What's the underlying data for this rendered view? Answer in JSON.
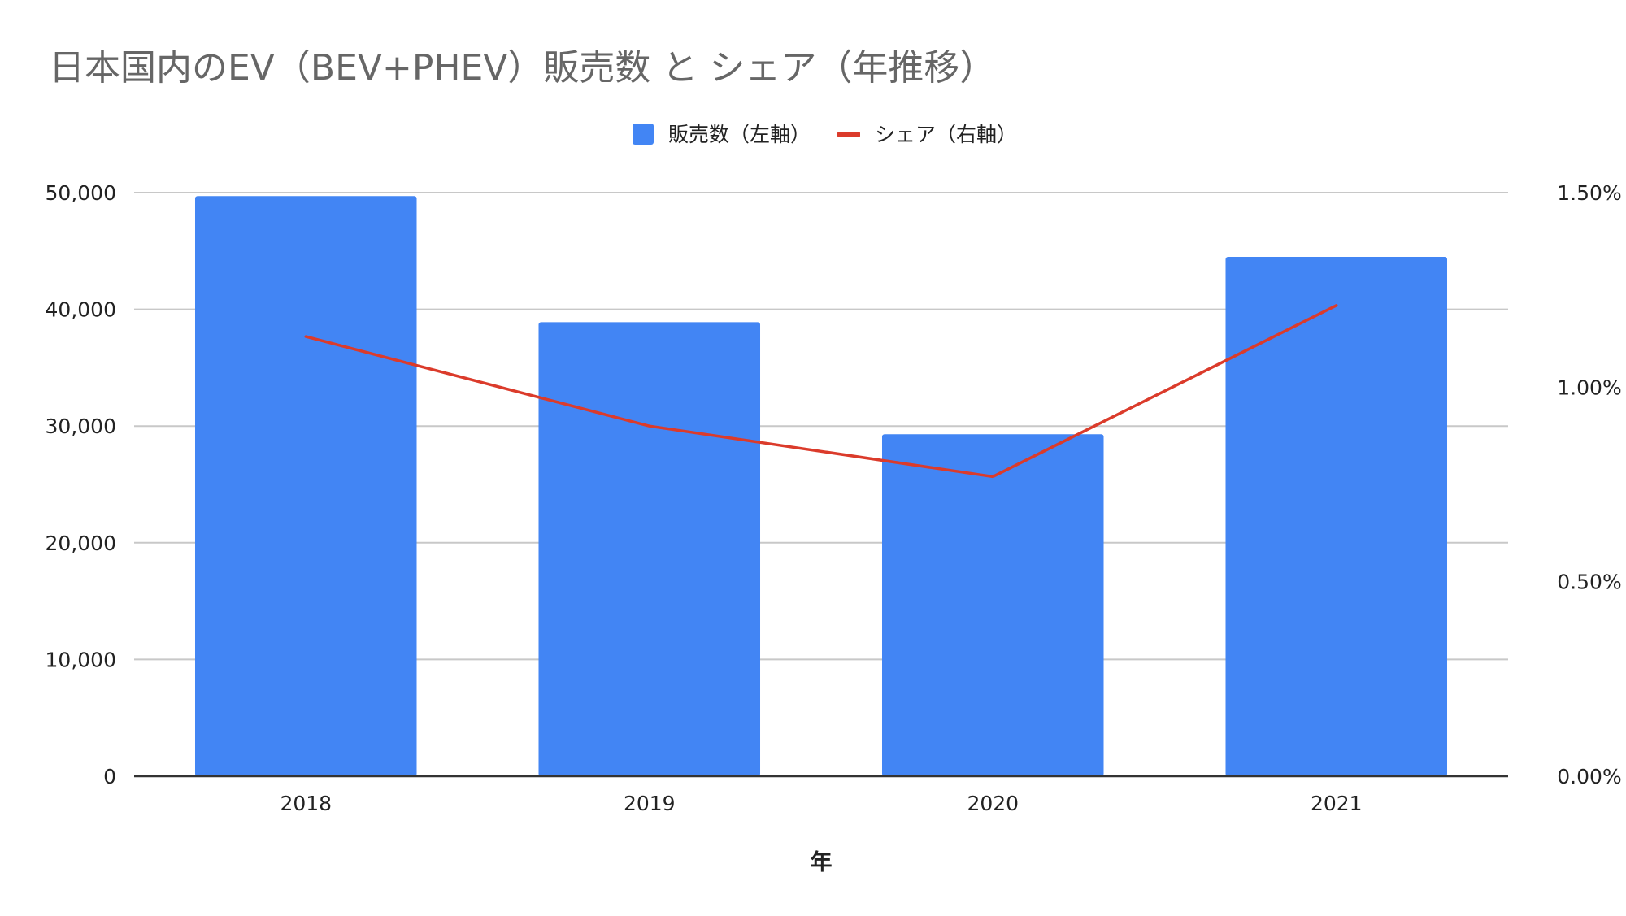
{
  "chart_data": {
    "type": "bar",
    "title": "日本国内のEV（BEV+PHEV）販売数 と シェア（年推移）",
    "xlabel": "年",
    "categories": [
      "2018",
      "2019",
      "2020",
      "2021"
    ],
    "y_left": {
      "min": 0,
      "max": 50000,
      "ticks": [
        "0",
        "10,000",
        "20,000",
        "30,000",
        "40,000",
        "50,000"
      ]
    },
    "y_right": {
      "min": 0,
      "max": 0.015,
      "ticks": [
        "0.00%",
        "0.50%",
        "1.00%",
        "1.50%"
      ]
    },
    "grid": true,
    "legend_position": "top",
    "series": [
      {
        "name": "販売数（左軸）",
        "type": "bar",
        "axis": "left",
        "color": "#4285f4",
        "values": [
          49700,
          38900,
          29300,
          44500
        ]
      },
      {
        "name": "シェア（右軸）",
        "type": "line",
        "axis": "right",
        "color": "#db3b2b",
        "values": [
          0.0113,
          0.009,
          0.0077,
          0.0121
        ]
      }
    ]
  }
}
